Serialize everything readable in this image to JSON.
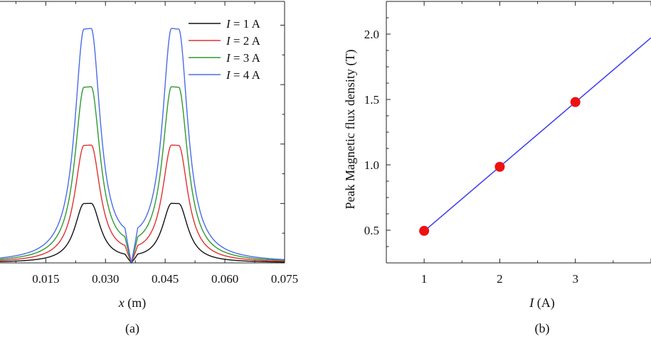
{
  "chart_data": [
    {
      "panel_label": "(a)",
      "type": "line",
      "xlabel_var": "x",
      "xlabel_unit": " (m)",
      "xlim": [
        0.0035,
        0.075
      ],
      "ylim": [
        0,
        2.2
      ],
      "xticks": [
        "0.015",
        "0.030",
        "0.045",
        "0.060",
        "0.075"
      ],
      "legend_position": "top-right",
      "series": [
        {
          "name_var": "I",
          "name_rest": " = 1 A",
          "color": "#111111",
          "peak": 0.5
        },
        {
          "name_var": "I",
          "name_rest": " = 2 A",
          "color": "#e03030",
          "peak": 0.99
        },
        {
          "name_var": "I",
          "name_rest": " = 3 A",
          "color": "#2e9a2e",
          "peak": 1.48
        },
        {
          "name_var": "I",
          "name_rest": " = 4 A",
          "color": "#4a6be8",
          "peak": 1.97
        }
      ],
      "peak_positions": [
        0.0255,
        0.0475
      ],
      "minimum_position": 0.0365
    },
    {
      "panel_label": "(b)",
      "type": "scatter",
      "xlabel_var": "I",
      "xlabel_unit": " (A)",
      "ylabel": "Peak Magnetic flux density (T)",
      "xlim": [
        0.5,
        4
      ],
      "ylim": [
        0.25,
        2.25
      ],
      "xticks": [
        "1",
        "2",
        "3"
      ],
      "yticks": [
        "0.5",
        "1.0",
        "1.5",
        "2.0"
      ],
      "points": [
        {
          "x": 1,
          "y": 0.495
        },
        {
          "x": 2,
          "y": 0.985
        },
        {
          "x": 3,
          "y": 1.48
        }
      ],
      "fit_line": {
        "slope": 0.493,
        "intercept": 0.0
      },
      "marker_color": "#ee1111",
      "line_color": "#3b3bf0"
    }
  ]
}
